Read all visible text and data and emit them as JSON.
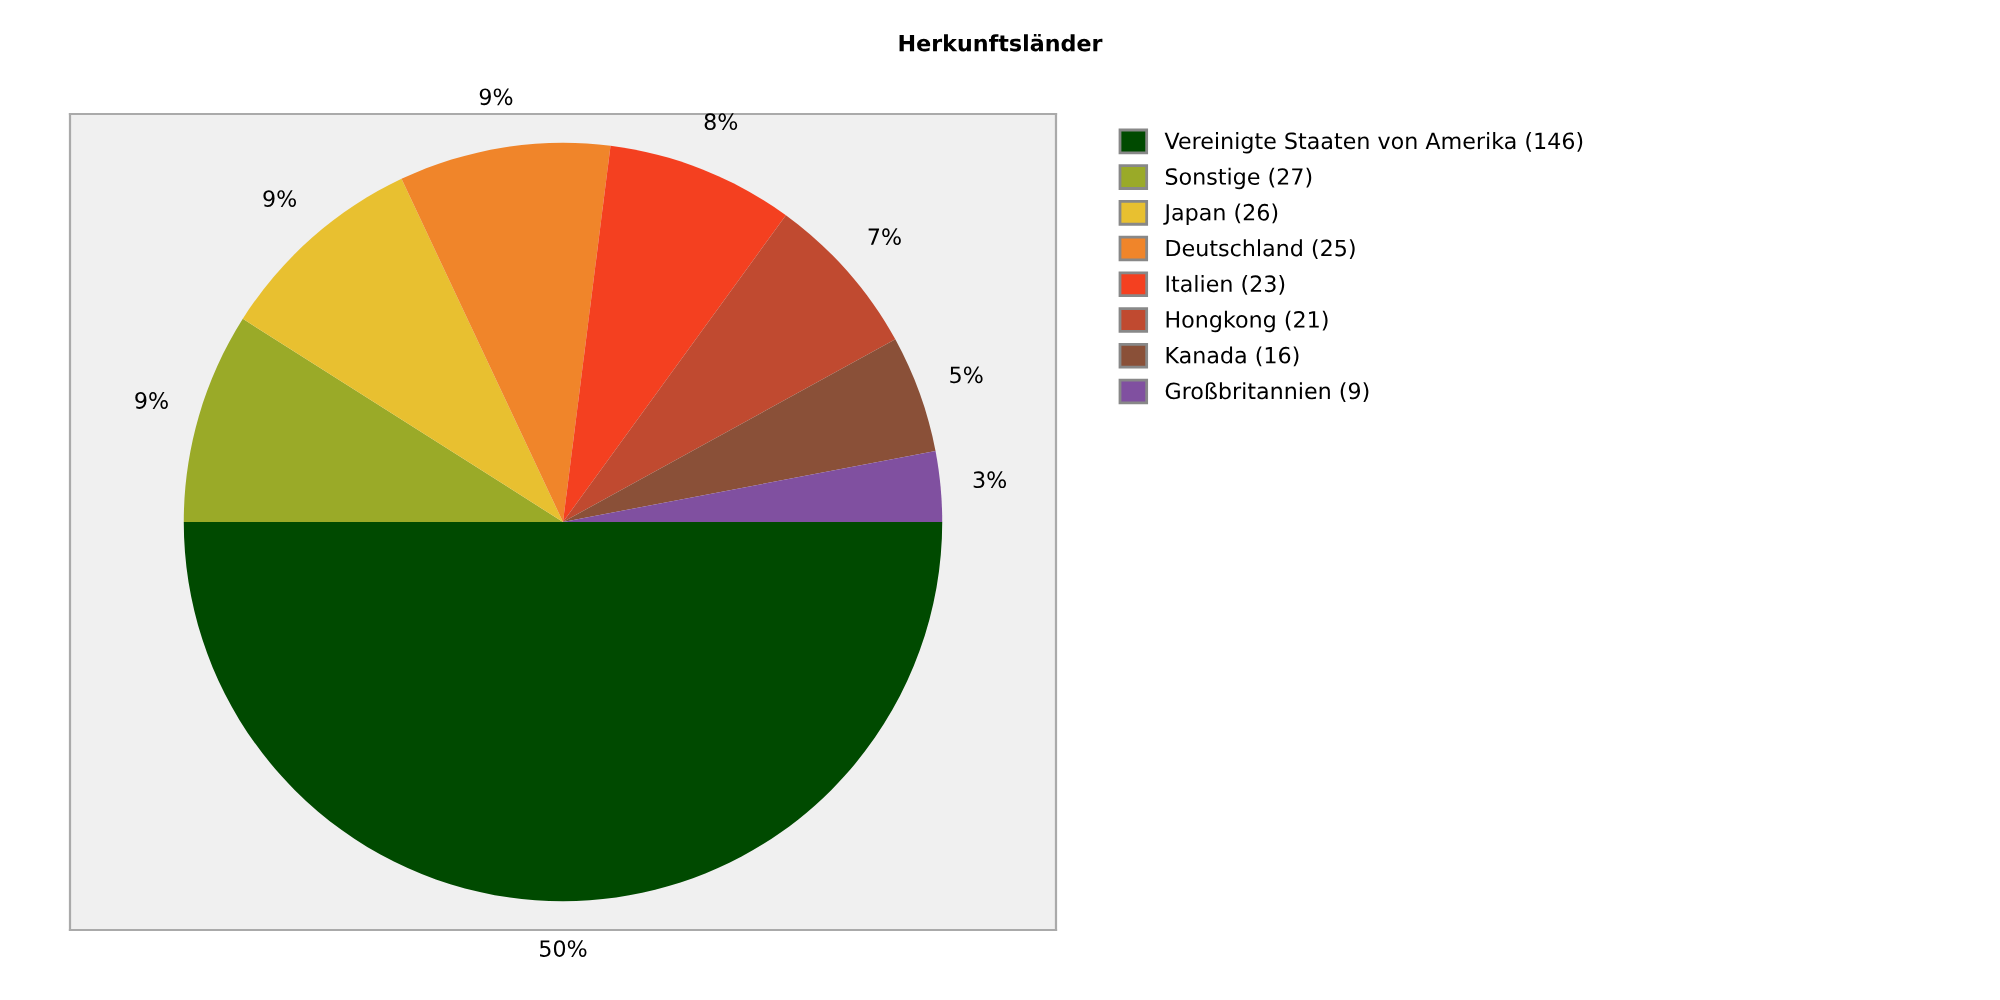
{
  "chart_data": {
    "type": "pie",
    "title": "Herkunftsländer",
    "categories": [
      "Vereinigte Staaten von Amerika (146)",
      "Sonstige (27)",
      "Japan (26)",
      "Deutschland (25)",
      "Italien (23)",
      "Hongkong (21)",
      "Kanada (16)",
      "Großbritannien (9)"
    ],
    "values": [
      50,
      9,
      9,
      9,
      8,
      7,
      5,
      3
    ],
    "value_labels": [
      "50%",
      "9%",
      "9%",
      "9%",
      "8%",
      "7%",
      "5%",
      "3%"
    ],
    "colors": [
      "#004a00",
      "#9aaa28",
      "#e8c030",
      "#f0852a",
      "#f44020",
      "#c04a30",
      "#8a5038",
      "#8050a0"
    ],
    "legend": "top right"
  }
}
